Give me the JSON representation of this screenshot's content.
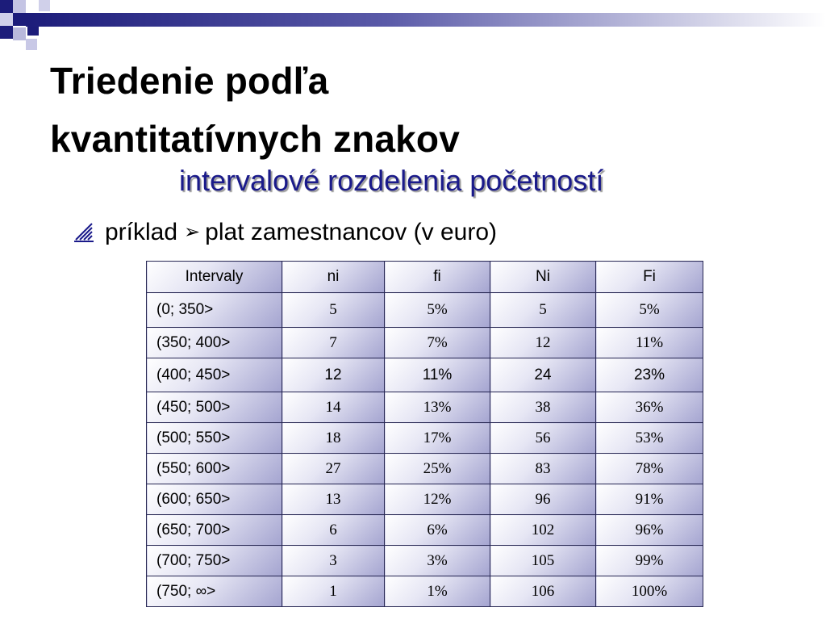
{
  "slide": {
    "title_line1": "Triedenie podľa",
    "title_line2": "kvantitatívnych znakov",
    "subtitle": "intervalové rozdelenia početností",
    "bullet": {
      "word": "príklad",
      "arrow": "➢",
      "text": "plat zamestnancov (v euro)"
    }
  },
  "table": {
    "headers": [
      "Intervaly",
      "ni",
      "fi",
      "Ni",
      "Fi"
    ],
    "rows": [
      [
        "(0; 350>",
        "5",
        "5%",
        "5",
        "5%"
      ],
      [
        "(350; 400>",
        "7",
        "7%",
        "12",
        "11%"
      ],
      [
        "(400; 450>",
        "12",
        "11%",
        "24",
        "23%"
      ],
      [
        "(450; 500>",
        "14",
        "13%",
        "38",
        "36%"
      ],
      [
        "(500; 550>",
        "18",
        "17%",
        "56",
        "53%"
      ],
      [
        "(550; 600>",
        "27",
        "25%",
        "83",
        "78%"
      ],
      [
        "(600; 650>",
        "13",
        "12%",
        "96",
        "91%"
      ],
      [
        "(650; 700>",
        "6",
        "6%",
        "102",
        "96%"
      ],
      [
        "(700; 750>",
        "3",
        "3%",
        "105",
        "99%"
      ],
      [
        "(750;  ∞>",
        "1",
        "1%",
        "106",
        "100%"
      ]
    ]
  },
  "colors": {
    "accent": "#1a1a8a",
    "header_gradient_start": "#1c1c7a"
  }
}
